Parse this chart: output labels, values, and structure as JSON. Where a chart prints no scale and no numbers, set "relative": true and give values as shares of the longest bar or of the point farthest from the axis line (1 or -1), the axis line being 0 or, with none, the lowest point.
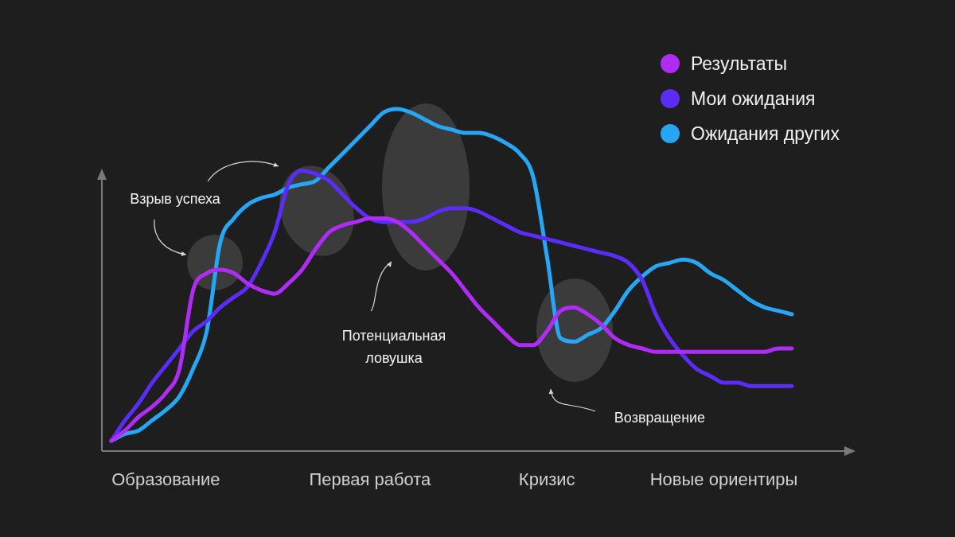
{
  "chart_data": {
    "type": "line",
    "relative": true,
    "legend": "top right",
    "grid": false,
    "marker": "none",
    "line_style": "solid",
    "categories": [
      null,
      null,
      null,
      null,
      "Образование",
      null,
      null,
      null,
      null,
      null,
      null,
      null,
      null,
      null,
      null,
      null,
      null,
      null,
      null,
      "Первая работа",
      null,
      null,
      null,
      null,
      null,
      null,
      null,
      null,
      null,
      null,
      null,
      null,
      "Кризис",
      null,
      null,
      null,
      null,
      null,
      null,
      null,
      null,
      null,
      null,
      null,
      null,
      "Новые ориентиры",
      null,
      null,
      null,
      null,
      null
    ],
    "series": [
      {
        "name": "Результаты",
        "color": "#b02cf5",
        "values": [
          0.03,
          0.06,
          0.1,
          0.13,
          0.17,
          0.24,
          0.47,
          0.52,
          0.53,
          0.52,
          0.49,
          0.47,
          0.46,
          0.49,
          0.53,
          0.59,
          0.64,
          0.66,
          0.67,
          0.68,
          0.68,
          0.67,
          0.64,
          0.6,
          0.56,
          0.52,
          0.47,
          0.42,
          0.38,
          0.34,
          0.31,
          0.31,
          0.35,
          0.41,
          0.42,
          0.4,
          0.37,
          0.33,
          0.31,
          0.3,
          0.29,
          0.29,
          0.29,
          0.29,
          0.29,
          0.29,
          0.29,
          0.29,
          0.29,
          0.3,
          0.3
        ]
      },
      {
        "name": "Мои ожидания",
        "color": "#5b2cf5",
        "values": [
          0.03,
          0.09,
          0.14,
          0.2,
          0.25,
          0.3,
          0.35,
          0.38,
          0.42,
          0.45,
          0.48,
          0.55,
          0.64,
          0.78,
          0.82,
          0.81,
          0.79,
          0.75,
          0.71,
          0.68,
          0.67,
          0.67,
          0.67,
          0.68,
          0.7,
          0.71,
          0.71,
          0.7,
          0.68,
          0.66,
          0.64,
          0.63,
          0.62,
          0.61,
          0.6,
          0.59,
          0.58,
          0.57,
          0.55,
          0.5,
          0.4,
          0.33,
          0.28,
          0.24,
          0.22,
          0.2,
          0.2,
          0.19,
          0.19,
          0.19,
          0.19
        ]
      },
      {
        "name": "Ожидания других",
        "color": "#27a6f5",
        "values": [
          0.03,
          0.05,
          0.06,
          0.09,
          0.12,
          0.16,
          0.24,
          0.35,
          0.61,
          0.68,
          0.72,
          0.74,
          0.75,
          0.77,
          0.78,
          0.79,
          0.83,
          0.87,
          0.91,
          0.95,
          0.99,
          1.0,
          0.99,
          0.97,
          0.95,
          0.94,
          0.93,
          0.93,
          0.92,
          0.9,
          0.87,
          0.8,
          0.57,
          0.33,
          0.32,
          0.34,
          0.36,
          0.41,
          0.47,
          0.51,
          0.54,
          0.55,
          0.56,
          0.55,
          0.52,
          0.5,
          0.47,
          0.44,
          0.42,
          0.41,
          0.4
        ]
      }
    ],
    "annotations": [
      "Взрыв успеха",
      "Потенциальная ловушка",
      "Возвращение"
    ]
  }
}
